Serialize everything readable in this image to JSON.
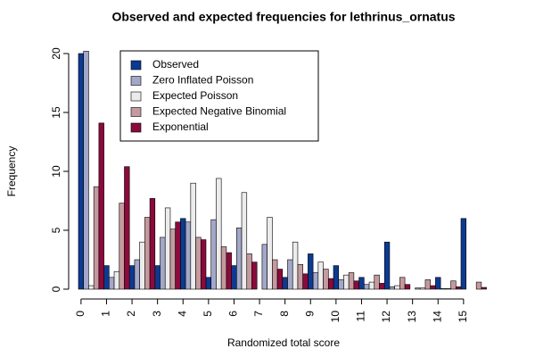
{
  "chart_data": {
    "type": "bar",
    "title": "Observed and expected frequencies for lethrinus_ornatus",
    "x_label": "Randomized total score",
    "y_label": "Frequency",
    "categories": [
      "0",
      "1",
      "2",
      "3",
      "4",
      "5",
      "6",
      "7",
      "8",
      "9",
      "10",
      "11",
      "12",
      "13",
      "14",
      "15"
    ],
    "series": [
      {
        "name": "Observed",
        "color": "#0d3a91",
        "values": [
          20,
          2,
          2,
          2,
          6,
          1,
          2,
          0,
          1,
          3,
          2,
          1,
          4,
          0,
          1,
          6
        ]
      },
      {
        "name": "Zero Inflated Poisson",
        "color": "#a3a8c9",
        "values": [
          20.2,
          1.0,
          2.5,
          4.4,
          5.7,
          5.9,
          5.2,
          3.8,
          2.5,
          1.4,
          0.8,
          0.4,
          0.2,
          0.1,
          0.05,
          0
        ]
      },
      {
        "name": "Expected Poisson",
        "color": "#ececec",
        "values": [
          0.3,
          1.5,
          4.0,
          6.9,
          9.0,
          9.4,
          8.2,
          6.1,
          4.0,
          2.3,
          1.2,
          0.6,
          0.3,
          0.1,
          0.05,
          0
        ]
      },
      {
        "name": "Expected Negative Binomial",
        "color": "#c49a9e",
        "values": [
          8.7,
          7.3,
          6.1,
          5.1,
          4.4,
          3.6,
          3.0,
          2.5,
          2.1,
          1.7,
          1.4,
          1.2,
          1.0,
          0.8,
          0.7,
          0.6
        ]
      },
      {
        "name": "Exponential",
        "color": "#8b0a3c",
        "values": [
          14.1,
          10.4,
          7.7,
          5.7,
          4.2,
          3.1,
          2.3,
          1.7,
          1.3,
          0.9,
          0.7,
          0.5,
          0.4,
          0.3,
          0.2,
          0.15
        ]
      }
    ],
    "ylim": [
      0,
      20
    ],
    "yticks": [
      0,
      5,
      10,
      15,
      20
    ],
    "grid": false,
    "legend": "top-left"
  }
}
